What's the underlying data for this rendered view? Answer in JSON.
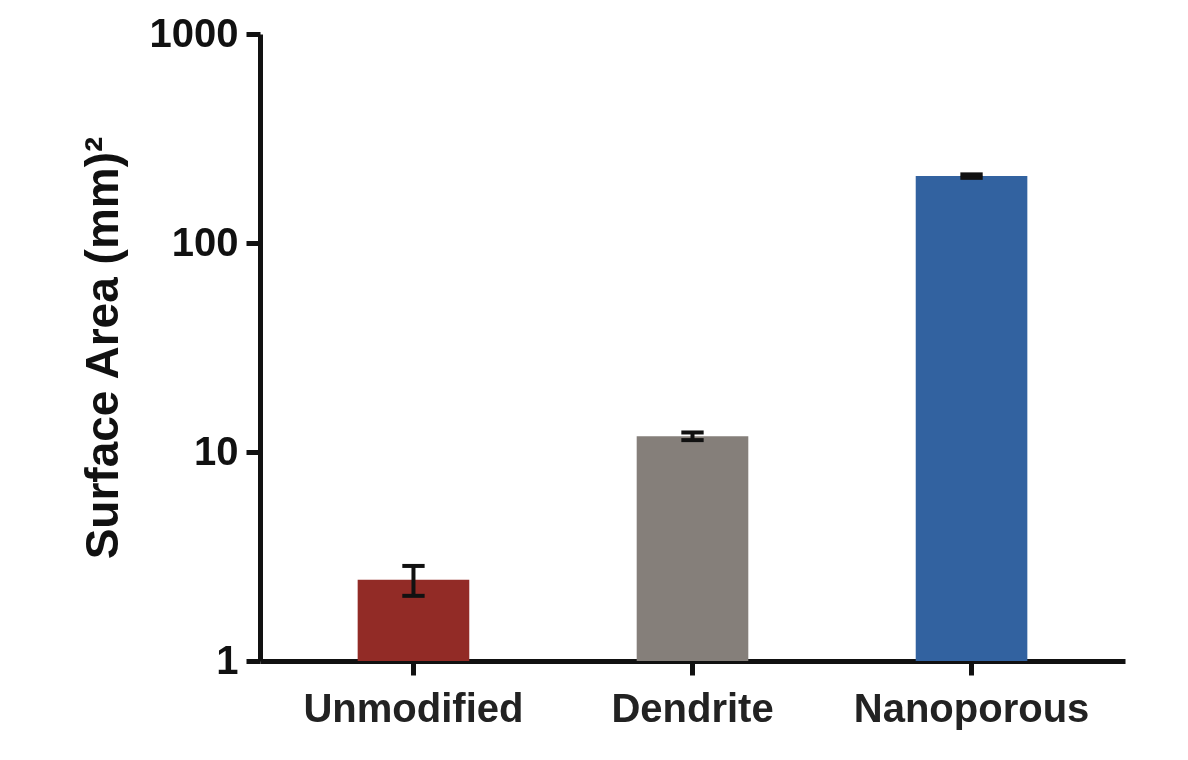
{
  "chart_data": {
    "type": "bar",
    "ylabel": "Surface Area (mm)²",
    "categories": [
      "Unmodified",
      "Dendrite",
      "Nanoporous"
    ],
    "values": [
      2.45,
      11.9,
      209
    ],
    "errors": [
      0.4,
      0.5,
      4
    ],
    "colors": [
      "#922b26",
      "#857f7a",
      "#3262a0"
    ],
    "log": true,
    "ylim": [
      1,
      1000
    ],
    "yticks": [
      1,
      10,
      100,
      1000
    ]
  }
}
